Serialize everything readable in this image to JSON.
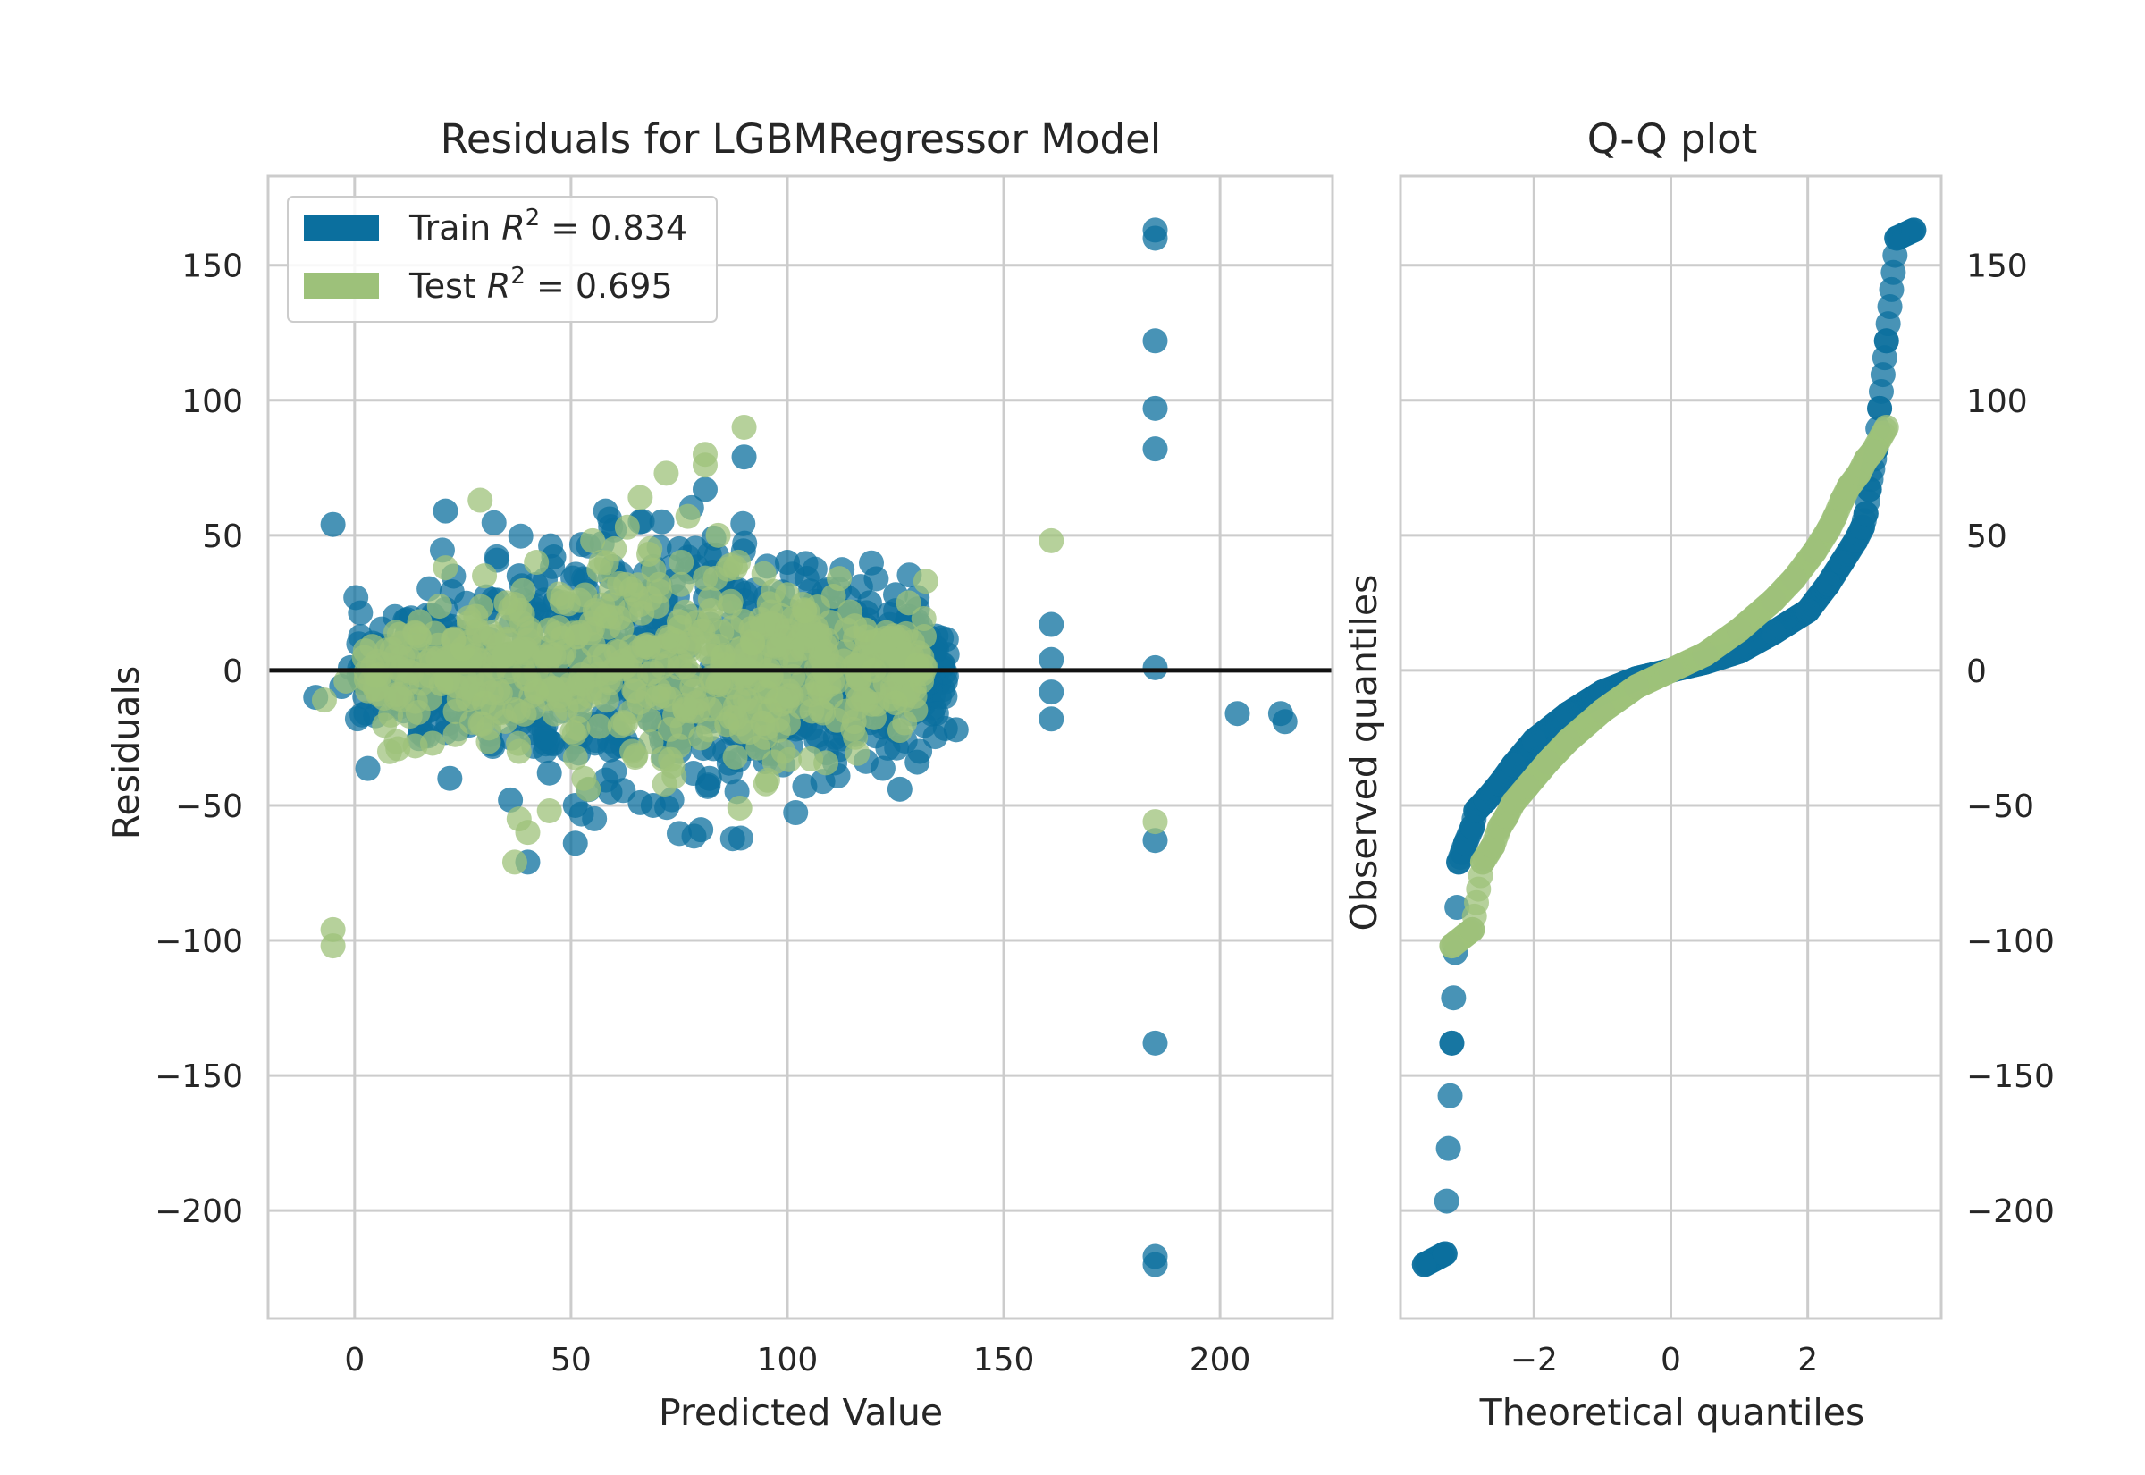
{
  "colors": {
    "train": "#0b6f9e",
    "test": "#9dc17a",
    "zero_line": "#111111",
    "grid": "#cccccc"
  },
  "legend": {
    "placement": "top-left",
    "train_prefix": "Train ",
    "test_prefix": "Test ",
    "r2_symbol": "R",
    "r2_exp": "2",
    "train_value": " = 0.834",
    "test_value": " = 0.695"
  },
  "chart_data": [
    {
      "type": "scatter",
      "title": "Residuals for LGBMRegressor Model",
      "xlabel": "Predicted Value",
      "ylabel": "Residuals",
      "xlim": [
        -20,
        226
      ],
      "ylim": [
        -240,
        183
      ],
      "xticks": [
        0,
        50,
        100,
        150,
        200
      ],
      "yticks": [
        -200,
        -150,
        -100,
        -50,
        0,
        50,
        100,
        150
      ],
      "xtick_labels": [
        "0",
        "50",
        "100",
        "150",
        "200"
      ],
      "ytick_labels": [
        "−200",
        "−150",
        "−100",
        "−50",
        "0",
        "50",
        "100",
        "150"
      ],
      "grid": true,
      "hline": 0,
      "series": [
        {
          "name": "Train R² = 0.834",
          "points": [
            [
              185,
              163
            ],
            [
              185,
              160
            ],
            [
              185,
              122
            ],
            [
              185,
              97
            ],
            [
              185,
              82
            ],
            [
              185,
              1
            ],
            [
              185,
              -63
            ],
            [
              185,
              -138
            ],
            [
              185,
              -217
            ],
            [
              185,
              -220
            ],
            [
              161,
              17
            ],
            [
              161,
              4
            ],
            [
              161,
              -8
            ],
            [
              161,
              -18
            ],
            [
              139,
              -22
            ],
            [
              204,
              -16
            ],
            [
              214,
              -16
            ],
            [
              215,
              -19
            ],
            [
              -5,
              54
            ],
            [
              21,
              59
            ],
            [
              81,
              67
            ],
            [
              90,
              79
            ],
            [
              -9,
              -10
            ],
            [
              -3,
              -6
            ],
            [
              2,
              3
            ],
            [
              1,
              -2
            ],
            [
              -1,
              1
            ],
            [
              7,
              -14
            ],
            [
              21,
              -23
            ],
            [
              22,
              -40
            ],
            [
              36,
              -48
            ],
            [
              40,
              -71
            ],
            [
              45,
              -38
            ],
            [
              51,
              -50
            ],
            [
              51,
              -64
            ],
            [
              59,
              -45
            ],
            [
              66,
              -49
            ],
            [
              69,
              -50
            ],
            [
              80,
              -59
            ],
            [
              82,
              -40
            ],
            [
              126,
              -44
            ],
            [
              130,
              -34
            ],
            [
              122,
              -10
            ],
            [
              128,
              20
            ],
            [
              134,
              7
            ],
            [
              125,
              28
            ],
            [
              130,
              27
            ],
            [
              100,
              40
            ],
            [
              83,
              49
            ],
            [
              86,
              36
            ],
            [
              58,
              59
            ],
            [
              60,
              52
            ],
            [
              66,
              55
            ],
            [
              71,
              55
            ],
            [
              75,
              45
            ],
            [
              46,
              42
            ],
            [
              38,
              35
            ],
            [
              33,
              26
            ],
            [
              112,
              30
            ],
            [
              119,
              25
            ],
            [
              108,
              -12
            ],
            [
              115,
              -8
            ],
            [
              104,
              -20
            ],
            [
              97,
              -5
            ],
            [
              62,
              -28
            ],
            [
              75,
              -30
            ],
            [
              55,
              -20
            ],
            [
              44,
              -25
            ],
            [
              30,
              -15
            ],
            [
              15,
              -18
            ],
            [
              12,
              8
            ],
            [
              25,
              12
            ],
            [
              33,
              -10
            ],
            [
              48,
              5
            ],
            [
              92,
              15
            ],
            [
              94,
              -18
            ],
            [
              78,
              20
            ],
            [
              68,
              10
            ],
            [
              86,
              -12
            ],
            [
              100,
              6
            ],
            [
              110,
              18
            ],
            [
              64,
              -8
            ]
          ]
        },
        {
          "name": "Test R² = 0.695",
          "points": [
            [
              90,
              90
            ],
            [
              81,
              80
            ],
            [
              81,
              76
            ],
            [
              72,
              73
            ],
            [
              66,
              64
            ],
            [
              29,
              63
            ],
            [
              77,
              57
            ],
            [
              84,
              50
            ],
            [
              -5,
              -96
            ],
            [
              -5,
              -102
            ],
            [
              161,
              48
            ],
            [
              185,
              -56
            ],
            [
              37,
              -71
            ],
            [
              40,
              -60
            ],
            [
              38,
              -55
            ],
            [
              38,
              -30
            ],
            [
              45,
              -52
            ],
            [
              53,
              -40
            ],
            [
              54,
              -44
            ],
            [
              89,
              -51
            ],
            [
              95,
              -42
            ],
            [
              73,
              -33
            ],
            [
              10,
              -29
            ],
            [
              14,
              -28
            ],
            [
              18,
              -27
            ],
            [
              -7,
              -11
            ],
            [
              -2,
              -4
            ],
            [
              5,
              -2
            ],
            [
              21,
              38
            ],
            [
              30,
              35
            ],
            [
              42,
              40
            ],
            [
              55,
              48
            ],
            [
              60,
              45
            ],
            [
              63,
              53
            ],
            [
              68,
              43
            ],
            [
              88,
              38
            ],
            [
              112,
              34
            ],
            [
              132,
              33
            ],
            [
              128,
              25
            ],
            [
              130,
              2
            ],
            [
              131,
              -4
            ],
            [
              125,
              -12
            ],
            [
              118,
              15
            ],
            [
              100,
              28
            ],
            [
              104,
              22
            ],
            [
              96,
              -15
            ],
            [
              107,
              -5
            ],
            [
              92,
              10
            ],
            [
              86,
              -20
            ],
            [
              80,
              -25
            ],
            [
              75,
              18
            ],
            [
              70,
              -10
            ],
            [
              64,
              30
            ],
            [
              58,
              20
            ],
            [
              52,
              -15
            ],
            [
              48,
              12
            ],
            [
              42,
              -8
            ],
            [
              35,
              25
            ],
            [
              30,
              -12
            ],
            [
              25,
              8
            ],
            [
              20,
              -5
            ],
            [
              15,
              12
            ],
            [
              28,
              20
            ],
            [
              45,
              15
            ],
            [
              85,
              5
            ],
            [
              95,
              -8
            ],
            [
              110,
              -10
            ],
            [
              120,
              0
            ]
          ]
        }
      ],
      "cluster_density": [
        {
          "series": "Train",
          "x_range": [
            0,
            137
          ],
          "y_spread": 18,
          "count": 900
        },
        {
          "series": "Test",
          "x_range": [
            2,
            132
          ],
          "y_spread": 14,
          "count": 550
        }
      ]
    },
    {
      "type": "scatter",
      "title": "Q-Q plot",
      "xlabel": "Theoretical quantiles",
      "ylabel": "Observed quantiles",
      "xlim": [
        -3.95,
        3.95
      ],
      "ylim": [
        -240,
        183
      ],
      "xticks": [
        -2,
        0,
        2
      ],
      "yticks": [
        -200,
        -150,
        -100,
        -50,
        0,
        50,
        100,
        150
      ],
      "xtick_labels": [
        "−2",
        "0",
        "2"
      ],
      "ytick_labels": [
        "−200",
        "−150",
        "−100",
        "−50",
        "0",
        "50",
        "100",
        "150"
      ],
      "ytick_side": "right",
      "grid": true,
      "series": [
        {
          "name": "Train",
          "points": [
            [
              -3.6,
              -220
            ],
            [
              -3.3,
              -216
            ],
            [
              -3.2,
              -138
            ],
            [
              -3.1,
              -71
            ],
            [
              -3.0,
              -64
            ],
            [
              -2.9,
              -58
            ],
            [
              -2.85,
              -52
            ],
            [
              -2.7,
              -48
            ],
            [
              -2.5,
              -42
            ],
            [
              -2.3,
              -35
            ],
            [
              -2.0,
              -26
            ],
            [
              -1.5,
              -16
            ],
            [
              -1.0,
              -8
            ],
            [
              -0.5,
              -3
            ],
            [
              0,
              0
            ],
            [
              0.5,
              3
            ],
            [
              1.0,
              7
            ],
            [
              1.5,
              14
            ],
            [
              2.0,
              22
            ],
            [
              2.3,
              32
            ],
            [
              2.5,
              40
            ],
            [
              2.7,
              48
            ],
            [
              2.8,
              53
            ],
            [
              2.85,
              58
            ],
            [
              2.9,
              67
            ],
            [
              3.0,
              82
            ],
            [
              3.05,
              97
            ],
            [
              3.15,
              122
            ],
            [
              3.3,
              160
            ],
            [
              3.55,
              163
            ]
          ]
        },
        {
          "name": "Test",
          "points": [
            [
              -3.2,
              -102
            ],
            [
              -2.9,
              -96
            ],
            [
              -2.75,
              -71
            ],
            [
              -2.6,
              -65
            ],
            [
              -2.5,
              -58
            ],
            [
              -2.4,
              -54
            ],
            [
              -2.3,
              -49
            ],
            [
              -2.1,
              -43
            ],
            [
              -1.8,
              -34
            ],
            [
              -1.5,
              -26
            ],
            [
              -1.0,
              -15
            ],
            [
              -0.5,
              -6
            ],
            [
              0,
              0
            ],
            [
              0.5,
              6
            ],
            [
              1.0,
              15
            ],
            [
              1.5,
              26
            ],
            [
              1.8,
              34
            ],
            [
              2.1,
              44
            ],
            [
              2.3,
              52
            ],
            [
              2.4,
              57
            ],
            [
              2.5,
              63
            ],
            [
              2.6,
              68
            ],
            [
              2.75,
              73
            ],
            [
              2.85,
              78
            ],
            [
              2.95,
              81
            ],
            [
              3.15,
              90
            ]
          ]
        }
      ]
    }
  ]
}
